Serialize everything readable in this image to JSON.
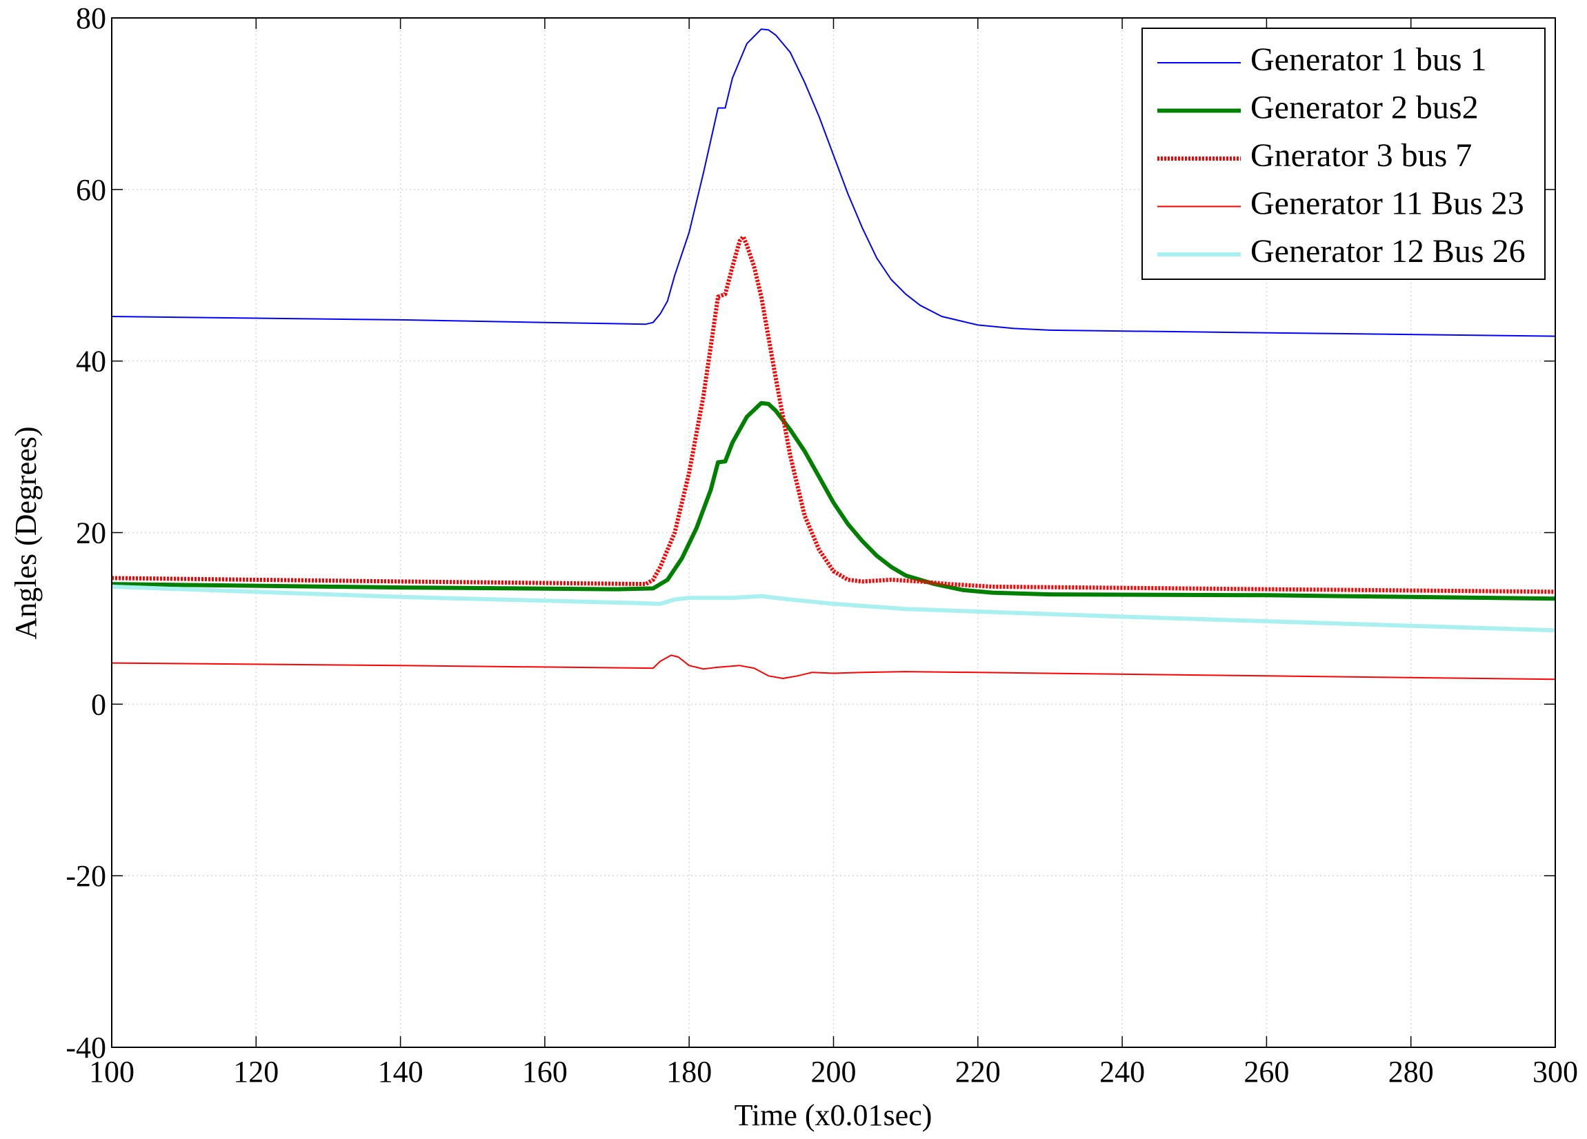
{
  "chart_data": {
    "type": "line",
    "xlabel": "Time (x0.01sec)",
    "ylabel": "Angles (Degrees)",
    "xlim": [
      100,
      300
    ],
    "xticks": [
      100,
      120,
      140,
      160,
      180,
      200,
      220,
      240,
      260,
      280,
      300
    ],
    "ylim": [
      -40,
      80
    ],
    "yticks": [
      -40,
      -20,
      0,
      20,
      40,
      60,
      80
    ],
    "grid": true,
    "legend": "upper right",
    "series": [
      {
        "name": "Generator 1 bus 1",
        "color": "#0000ff",
        "style": "thin",
        "x": [
          100,
          120,
          140,
          160,
          174,
          175,
          176,
          177,
          178,
          180,
          182,
          184,
          185,
          186,
          188,
          190,
          191,
          192,
          194,
          196,
          198,
          200,
          202,
          204,
          206,
          208,
          210,
          212,
          215,
          220,
          225,
          230,
          250,
          270,
          300
        ],
        "values": [
          45.2,
          45,
          44.8,
          44.5,
          44.3,
          44.5,
          45.5,
          47,
          50,
          55,
          62,
          69.5,
          69.5,
          73,
          77,
          78.7,
          78.6,
          78,
          76,
          72.5,
          68.5,
          64,
          59.5,
          55.5,
          52,
          49.5,
          47.8,
          46.5,
          45.2,
          44.2,
          43.8,
          43.6,
          43.4,
          43.2,
          42.9
        ]
      },
      {
        "name": "Generator 2 bus2",
        "color": "#008000",
        "style": "thick",
        "x": [
          100,
          140,
          170,
          175,
          177,
          179,
          181,
          183,
          184,
          185,
          186,
          188,
          190,
          191,
          192,
          194,
          196,
          198,
          200,
          202,
          204,
          206,
          208,
          210,
          214,
          218,
          222,
          230,
          260,
          300
        ],
        "values": [
          14,
          13.6,
          13.4,
          13.5,
          14.5,
          17,
          20.5,
          25,
          28.2,
          28.3,
          30.5,
          33.5,
          35.1,
          35,
          34.2,
          32,
          29.5,
          26.5,
          23.5,
          21,
          19,
          17.3,
          16,
          15,
          14,
          13.3,
          13,
          12.8,
          12.7,
          12.3
        ]
      },
      {
        "name": "Gnerator 3 bus 7",
        "color": "#ff0000",
        "style": "dotted",
        "x": [
          100,
          140,
          174,
          175,
          176,
          178,
          180,
          182,
          184,
          185,
          186,
          187,
          187.5,
          188,
          189,
          190,
          192,
          194,
          196,
          198,
          200,
          202,
          204,
          208,
          212,
          216,
          222,
          260,
          300
        ],
        "values": [
          14.7,
          14.3,
          14,
          14.5,
          16,
          20,
          27,
          36,
          47.5,
          47.8,
          51,
          54,
          54.5,
          53.5,
          51,
          47.5,
          38,
          29,
          22,
          18,
          15.5,
          14.5,
          14.3,
          14.5,
          14.3,
          14,
          13.7,
          13.4,
          13.1
        ]
      },
      {
        "name": "Generator 11 Bus 23",
        "color": "#ff0000",
        "style": "thin",
        "x": [
          100,
          140,
          175,
          176,
          177.5,
          178.5,
          180,
          182,
          184,
          187,
          189,
          191,
          193,
          195,
          197,
          200,
          204,
          210,
          220,
          260,
          300
        ],
        "values": [
          4.8,
          4.5,
          4.2,
          5,
          5.7,
          5.5,
          4.5,
          4.1,
          4.3,
          4.5,
          4.2,
          3.3,
          3,
          3.3,
          3.7,
          3.6,
          3.7,
          3.8,
          3.7,
          3.3,
          2.9
        ]
      },
      {
        "name": "Generator 12 Bus 26",
        "color": "#aaf0f0",
        "style": "thick",
        "x": [
          100,
          140,
          172,
          176,
          178,
          180,
          186,
          190,
          194,
          200,
          210,
          240,
          270,
          300
        ],
        "values": [
          13.7,
          12.5,
          11.8,
          11.7,
          12.2,
          12.4,
          12.4,
          12.6,
          12.2,
          11.7,
          11.1,
          10.2,
          9.4,
          8.6
        ]
      }
    ]
  }
}
